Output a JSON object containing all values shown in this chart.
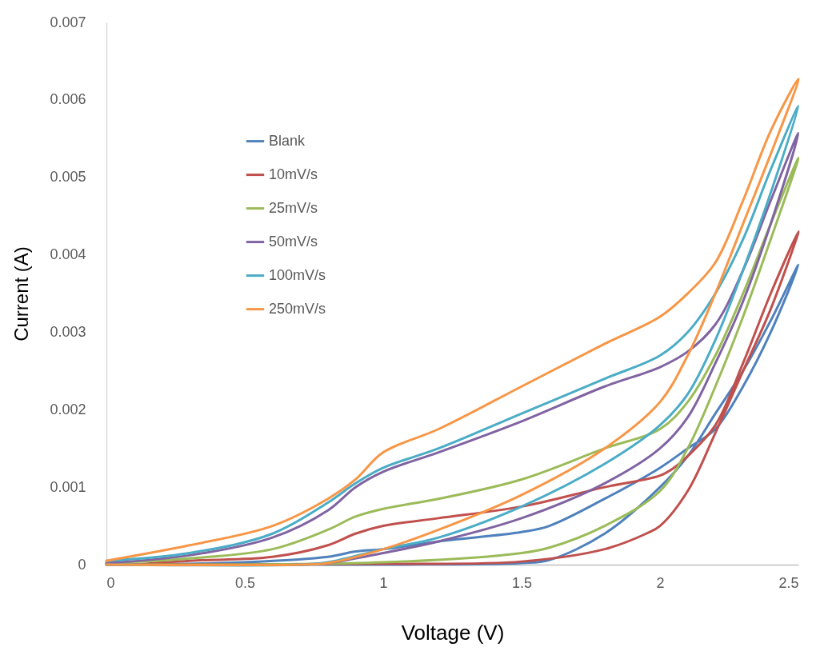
{
  "chart_data": {
    "type": "line",
    "xlabel": "Voltage (V)",
    "ylabel": "Current (A)",
    "xlim": [
      0,
      2.5
    ],
    "xticks": [
      0,
      0.5,
      1,
      1.5,
      2,
      2.5
    ],
    "ylim": [
      0,
      0.007
    ],
    "yticks": [
      0,
      0.001,
      0.002,
      0.003,
      0.004,
      0.005,
      0.006,
      0.007
    ],
    "grid": false,
    "legend": "top left",
    "marker": "none",
    "line_style": "solid",
    "series": [
      {
        "name": "Blank",
        "color": "#4f81bd",
        "x": [
          0,
          0.5,
          1,
          1.5,
          1.6,
          1.8,
          2,
          2.1,
          2.2,
          2.3,
          2.4,
          2.5,
          2.4,
          2.3,
          2.2,
          2.1,
          2,
          1.8,
          1.6,
          1.5,
          1.2,
          1,
          0.9,
          0.8,
          0.5,
          0.1
        ],
        "values": [
          0,
          0,
          0,
          2e-05,
          6e-05,
          0.0004,
          0.001,
          0.0014,
          0.00195,
          0.0025,
          0.00315,
          0.00387,
          0.003,
          0.0023,
          0.00175,
          0.0015,
          0.00125,
          0.00085,
          0.0005,
          0.00042,
          0.0003,
          0.0002,
          0.00017,
          0.0001,
          3e-05,
          0
        ]
      },
      {
        "name": "10mV/s",
        "color": "#c0504d",
        "x": [
          0,
          1,
          1.5,
          1.8,
          1.95,
          2,
          2.1,
          2.2,
          2.3,
          2.4,
          2.5,
          2.4,
          2.3,
          2.2,
          2.1,
          2.05,
          2,
          1.8,
          1.5,
          1.2,
          1,
          0.9,
          0.8,
          0.6,
          0.3,
          0.1
        ],
        "values": [
          0,
          1e-05,
          4e-05,
          0.0002,
          0.0004,
          0.0005,
          0.00095,
          0.0017,
          0.0025,
          0.0033,
          0.0043,
          0.0035,
          0.0026,
          0.0018,
          0.0014,
          0.00125,
          0.00115,
          0.001,
          0.00075,
          0.0006,
          0.0005,
          0.0004,
          0.00025,
          0.0001,
          5e-05,
          0
        ]
      },
      {
        "name": "25mV/s",
        "color": "#9bbb59",
        "x": [
          0,
          1,
          1.5,
          1.6,
          1.8,
          2,
          2.1,
          2.2,
          2.3,
          2.4,
          2.5,
          2.4,
          2.3,
          2.2,
          2.1,
          2,
          1.8,
          1.5,
          1.2,
          1,
          0.9,
          0.8,
          0.6,
          0.3,
          0
        ],
        "values": [
          0,
          3e-05,
          0.00015,
          0.00022,
          0.0005,
          0.00095,
          0.0015,
          0.0023,
          0.0032,
          0.0042,
          0.00525,
          0.0044,
          0.0035,
          0.0027,
          0.0021,
          0.00175,
          0.0015,
          0.0011,
          0.00085,
          0.00072,
          0.00062,
          0.00045,
          0.0002,
          8e-05,
          2e-05
        ]
      },
      {
        "name": "50mV/s",
        "color": "#8064a2",
        "x": [
          0,
          0.7,
          0.8,
          1,
          1.2,
          1.5,
          1.8,
          2,
          2.1,
          2.2,
          2.3,
          2.4,
          2.5,
          2.4,
          2.3,
          2.2,
          2.1,
          2,
          1.8,
          1.5,
          1.2,
          1,
          0.9,
          0.8,
          0.6,
          0.3,
          0
        ],
        "values": [
          0,
          0,
          2e-05,
          0.00015,
          0.0003,
          0.0006,
          0.00105,
          0.0015,
          0.0019,
          0.0026,
          0.0034,
          0.0044,
          0.00557,
          0.0047,
          0.0038,
          0.0031,
          0.00275,
          0.00255,
          0.0023,
          0.00185,
          0.00145,
          0.0012,
          0.001,
          0.0007,
          0.00035,
          0.00012,
          2e-05
        ]
      },
      {
        "name": "100mV/s",
        "color": "#4bacc6",
        "x": [
          0,
          0.7,
          0.8,
          1,
          1.2,
          1.5,
          1.8,
          2,
          2.1,
          2.2,
          2.3,
          2.4,
          2.5,
          2.4,
          2.3,
          2.2,
          2.1,
          2,
          1.8,
          1.5,
          1.2,
          1,
          0.9,
          0.8,
          0.6,
          0.3,
          0
        ],
        "values": [
          0,
          0,
          3e-05,
          0.0002,
          0.00035,
          0.00075,
          0.0013,
          0.0018,
          0.0022,
          0.0029,
          0.0038,
          0.0048,
          0.00592,
          0.0051,
          0.0042,
          0.0035,
          0.003,
          0.0027,
          0.0024,
          0.00195,
          0.0015,
          0.00125,
          0.00105,
          0.0008,
          0.0004,
          0.00015,
          5e-05
        ]
      },
      {
        "name": "250mV/s",
        "color": "#f79646",
        "x": [
          0,
          0.7,
          0.8,
          1,
          1.2,
          1.5,
          1.8,
          2,
          2.1,
          2.2,
          2.3,
          2.4,
          2.5,
          2.4,
          2.3,
          2.2,
          2.1,
          2,
          1.8,
          1.5,
          1.2,
          1,
          0.9,
          0.8,
          0.6,
          0.3,
          0
        ],
        "values": [
          0,
          0,
          2e-05,
          0.0002,
          0.00045,
          0.0009,
          0.0015,
          0.0021,
          0.0027,
          0.0035,
          0.0044,
          0.0053,
          0.00627,
          0.0056,
          0.0047,
          0.0039,
          0.0035,
          0.0032,
          0.00285,
          0.0023,
          0.00175,
          0.00145,
          0.0011,
          0.00085,
          0.0005,
          0.00025,
          5e-05
        ]
      }
    ]
  }
}
